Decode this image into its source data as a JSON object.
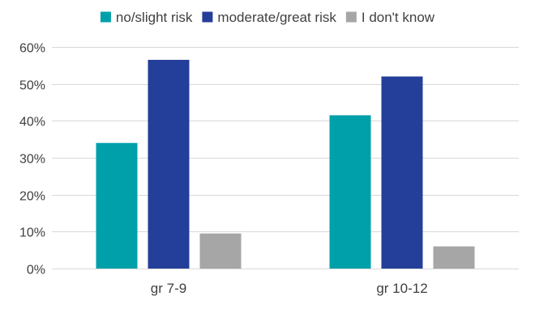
{
  "chart_data": {
    "type": "bar",
    "title": "",
    "xlabel": "",
    "ylabel": "",
    "categories": [
      "gr 7-9",
      "gr 10-12"
    ],
    "series": [
      {
        "name": "no/slight risk",
        "values": [
          34,
          41.5
        ],
        "color": "#00A0AA"
      },
      {
        "name": "moderate/great risk",
        "values": [
          56.5,
          52
        ],
        "color": "#243F99"
      },
      {
        "name": "I don't know",
        "values": [
          9.5,
          6
        ],
        "color": "#A6A6A6"
      }
    ],
    "ylim": [
      0,
      60
    ],
    "yticks": [
      0,
      10,
      20,
      30,
      40,
      50,
      60
    ],
    "ytick_labels": [
      "0%",
      "10%",
      "20%",
      "30%",
      "40%",
      "50%",
      "60%"
    ],
    "grid": "horizontal",
    "legend_position": "top-center",
    "colors": {
      "gridline": "#D9D9D9",
      "axis_text": "#404040"
    }
  }
}
